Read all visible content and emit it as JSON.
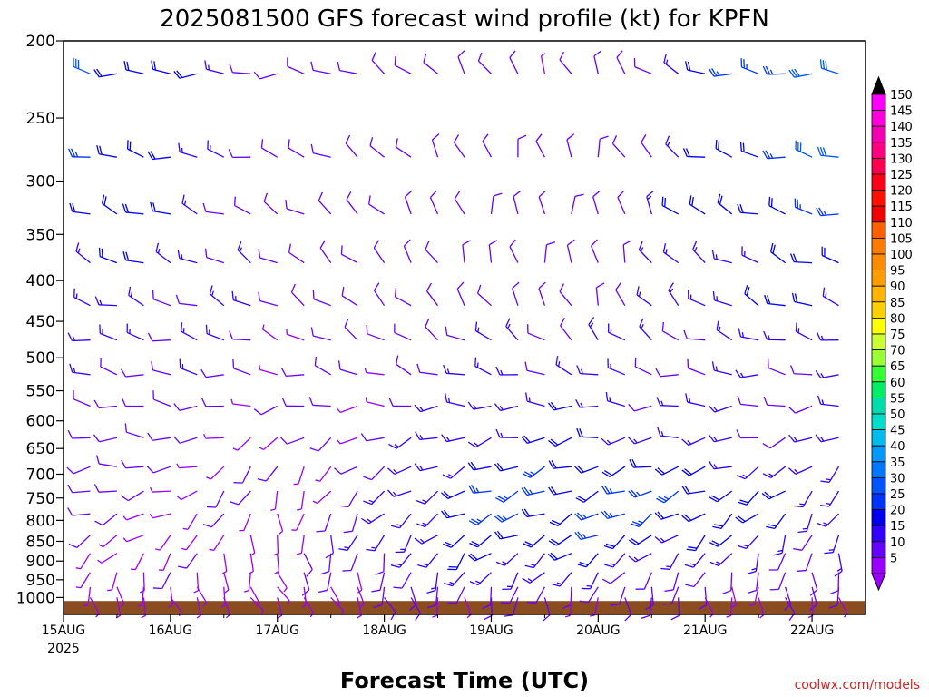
{
  "chart_data": {
    "type": "wind-barb-profile",
    "title": "2025081500 GFS forecast wind profile (kt) for KPFN",
    "xlabel": "Forecast Time (UTC)",
    "credit": "coolwx.com/models",
    "yaxis": {
      "unit": "hPa",
      "reversed": true,
      "log_pressure": true,
      "ylim": [
        200,
        1050
      ],
      "ticks": [
        "200",
        "250",
        "300",
        "350",
        "400",
        "450",
        "500",
        "550",
        "600",
        "650",
        "700",
        "750",
        "800",
        "850",
        "900",
        "950",
        "1000"
      ]
    },
    "xaxis": {
      "ticks": [
        {
          "label": "15AUG",
          "sublabel": "2025",
          "hour": 0
        },
        {
          "label": "16AUG",
          "hour": 24
        },
        {
          "label": "17AUG",
          "hour": 48
        },
        {
          "label": "18AUG",
          "hour": 72
        },
        {
          "label": "19AUG",
          "hour": 96
        },
        {
          "label": "20AUG",
          "hour": 120
        },
        {
          "label": "21AUG",
          "hour": 144
        },
        {
          "label": "22AUG",
          "hour": 168
        }
      ],
      "xlim_hours": [
        0,
        180
      ],
      "step_hours": 6
    },
    "colorbar": {
      "labels": [
        "150",
        "145",
        "140",
        "135",
        "130",
        "125",
        "120",
        "115",
        "110",
        "105",
        "100",
        "95",
        "90",
        "85",
        "80",
        "75",
        "70",
        "65",
        "60",
        "55",
        "50",
        "45",
        "40",
        "35",
        "30",
        "25",
        "20",
        "15",
        "10",
        "5"
      ],
      "colors": [
        "#ff00ff",
        "#ff00dd",
        "#f400b4",
        "#ff0080",
        "#ff0050",
        "#ff0018",
        "#ff1000",
        "#f00000",
        "#ff6000",
        "#ff7a00",
        "#ff8c00",
        "#ff9c00",
        "#ffb400",
        "#ffd000",
        "#ffff00",
        "#ccff33",
        "#99ff33",
        "#33ff33",
        "#00ee66",
        "#00ddaa",
        "#00ddcc",
        "#00bbee",
        "#0099ff",
        "#0077ff",
        "#0055ff",
        "#0033ff",
        "#0000ee",
        "#3300ff",
        "#6600ff",
        "#9900ff"
      ],
      "upper_arrow": "#000000",
      "lower_arrow": "#9900ff"
    },
    "levels_hpa": [
      220,
      280,
      330,
      380,
      430,
      475,
      525,
      575,
      630,
      685,
      735,
      785,
      835,
      880,
      930,
      970,
      1000
    ],
    "surface": {
      "color": "#8b4c1f",
      "pressure_hpa": 1010
    },
    "wind_samples": [
      {
        "hour": 0,
        "dirs": [
          280,
          285,
          290,
          295,
          290,
          285,
          280,
          275,
          270,
          265,
          260,
          250,
          240,
          230,
          200,
          180,
          170
        ],
        "speeds": [
          30,
          30,
          25,
          18,
          15,
          15,
          12,
          12,
          10,
          10,
          10,
          8,
          8,
          8,
          6,
          6,
          5
        ]
      },
      {
        "hour": 24,
        "dirs": [
          275,
          280,
          285,
          290,
          290,
          285,
          280,
          275,
          270,
          265,
          255,
          245,
          230,
          210,
          190,
          170,
          160
        ],
        "speeds": [
          18,
          18,
          18,
          16,
          14,
          14,
          12,
          10,
          10,
          8,
          8,
          8,
          6,
          6,
          6,
          5,
          5
        ]
      },
      {
        "hour": 48,
        "dirs": [
          270,
          290,
          300,
          300,
          295,
          290,
          280,
          260,
          230,
          200,
          190,
          180,
          170,
          160,
          160,
          150,
          150
        ],
        "speeds": [
          10,
          10,
          10,
          10,
          10,
          8,
          8,
          8,
          6,
          6,
          6,
          5,
          5,
          5,
          5,
          5,
          5
        ]
      },
      {
        "hour": 72,
        "dirs": [
          300,
          310,
          320,
          320,
          310,
          300,
          290,
          270,
          250,
          240,
          230,
          220,
          210,
          200,
          190,
          170,
          150
        ],
        "speeds": [
          10,
          10,
          10,
          10,
          10,
          10,
          8,
          8,
          10,
          10,
          12,
          12,
          14,
          12,
          10,
          8,
          6
        ]
      },
      {
        "hour": 96,
        "dirs": [
          330,
          340,
          350,
          350,
          330,
          300,
          280,
          265,
          255,
          250,
          250,
          245,
          240,
          230,
          220,
          200,
          180
        ],
        "speeds": [
          10,
          10,
          10,
          10,
          10,
          12,
          14,
          15,
          18,
          20,
          22,
          22,
          20,
          18,
          15,
          10,
          8
        ]
      },
      {
        "hour": 120,
        "dirs": [
          340,
          350,
          355,
          350,
          340,
          320,
          290,
          270,
          255,
          250,
          250,
          245,
          240,
          230,
          220,
          200,
          180
        ],
        "speeds": [
          8,
          8,
          10,
          10,
          10,
          12,
          14,
          16,
          18,
          22,
          24,
          25,
          22,
          18,
          14,
          10,
          8
        ]
      },
      {
        "hour": 144,
        "dirs": [
          280,
          290,
          300,
          300,
          300,
          290,
          280,
          270,
          260,
          250,
          245,
          240,
          230,
          220,
          200,
          180,
          170
        ],
        "speeds": [
          20,
          18,
          18,
          16,
          15,
          14,
          12,
          12,
          14,
          18,
          22,
          22,
          18,
          14,
          10,
          8,
          6
        ]
      },
      {
        "hour": 168,
        "dirs": [
          270,
          280,
          285,
          290,
          285,
          280,
          275,
          265,
          250,
          230,
          220,
          210,
          200,
          190,
          180,
          170,
          160
        ],
        "speeds": [
          30,
          28,
          22,
          20,
          18,
          15,
          14,
          12,
          12,
          14,
          16,
          16,
          14,
          12,
          10,
          8,
          6
        ]
      },
      {
        "hour": 180,
        "dirs": [
          270,
          275,
          280,
          285,
          285,
          280,
          270,
          260,
          245,
          225,
          215,
          205,
          195,
          185,
          175,
          165,
          160
        ],
        "speeds": [
          30,
          26,
          22,
          20,
          18,
          16,
          14,
          12,
          12,
          14,
          16,
          16,
          14,
          12,
          10,
          8,
          6
        ]
      }
    ]
  }
}
